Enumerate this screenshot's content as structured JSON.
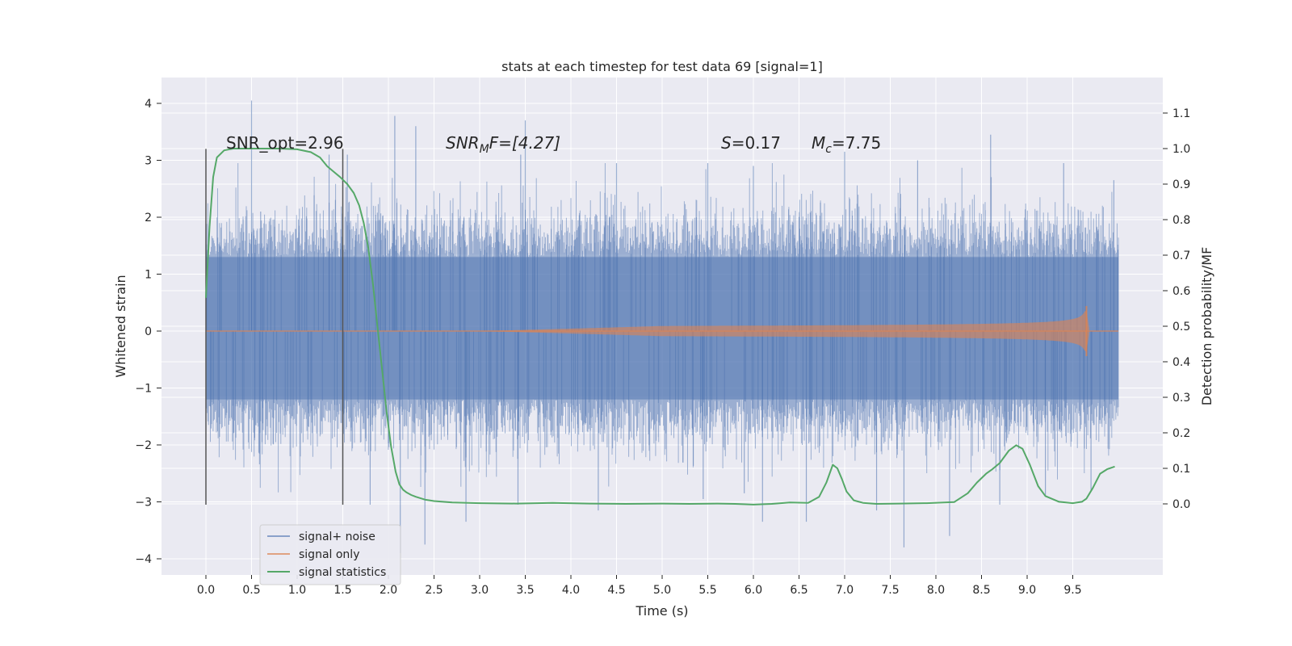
{
  "chart_data": {
    "type": "line",
    "title": "stats at each timestep for test data 69 [signal=1]",
    "xlabel": "Time (s)",
    "ylabel": "Whitened strain",
    "y2label": "Detection probability/MF",
    "xlim": [
      -0.5,
      10.5
    ],
    "ylim": [
      -4.25,
      4.4
    ],
    "y2lim": [
      -0.2,
      1.2
    ],
    "x_ticks": [
      "0.0",
      "0.5",
      "1.0",
      "1.5",
      "2.0",
      "2.5",
      "3.0",
      "3.5",
      "4.0",
      "4.5",
      "5.0",
      "5.5",
      "6.0",
      "6.5",
      "7.0",
      "7.5",
      "8.0",
      "8.5",
      "9.0",
      "9.5"
    ],
    "y_ticks": [
      "4",
      "3",
      "2",
      "1",
      "0",
      "−1",
      "−2",
      "−3",
      "−4"
    ],
    "y2_ticks": [
      "1.1",
      "1.0",
      "0.9",
      "0.8",
      "0.7",
      "0.6",
      "0.5",
      "0.4",
      "0.3",
      "0.2",
      "0.1",
      "0.0"
    ],
    "grid": true,
    "legend_position": "bottom-left",
    "colors": {
      "background": "#eaeaf2",
      "grid": "#ffffff",
      "signal_noise": "#4c72b0",
      "signal_only": "#dd8452",
      "statistics": "#55a868",
      "window_marker": "#555555"
    },
    "series": [
      {
        "name": "signal+ noise",
        "kind": "noise-band",
        "x_range": [
          0.0,
          10.0
        ],
        "core_band": [
          -1.2,
          1.3
        ],
        "envelope": [
          -2.5,
          2.6
        ],
        "spikes": [
          [
            0.5,
            4.05
          ],
          [
            1.35,
            3.1
          ],
          [
            2.07,
            3.78
          ],
          [
            2.3,
            3.6
          ],
          [
            3.5,
            3.7
          ],
          [
            3.45,
            3.1
          ],
          [
            4.5,
            2.95
          ],
          [
            5.5,
            2.95
          ],
          [
            6.0,
            2.9
          ],
          [
            7.0,
            3.15
          ],
          [
            7.8,
            3.0
          ],
          [
            8.6,
            3.45
          ],
          [
            9.4,
            2.95
          ],
          [
            9.95,
            2.65
          ],
          [
            0.6,
            2.1
          ],
          [
            1.55,
            3.1
          ],
          [
            1.8,
            -3.05
          ],
          [
            2.13,
            -3.9
          ],
          [
            2.4,
            -3.75
          ],
          [
            2.85,
            -3.35
          ],
          [
            3.42,
            -3.05
          ],
          [
            4.3,
            -3.15
          ],
          [
            5.45,
            -2.95
          ],
          [
            6.1,
            -3.35
          ],
          [
            6.58,
            -3.35
          ],
          [
            7.35,
            -3.15
          ],
          [
            7.65,
            -3.8
          ],
          [
            8.15,
            -3.6
          ],
          [
            8.7,
            -3.05
          ],
          [
            9.2,
            -2.9
          ],
          [
            5.9,
            -2.85
          ],
          [
            9.7,
            -2.8
          ]
        ]
      },
      {
        "name": "signal only",
        "kind": "chirp",
        "t_start": 3.0,
        "t_merger": 9.65,
        "peak_amplitude": 0.35
      },
      {
        "name": "signal statistics",
        "axis": "y2",
        "x": [
          0.0,
          0.04,
          0.08,
          0.12,
          0.2,
          0.3,
          0.5,
          0.8,
          1.0,
          1.15,
          1.25,
          1.33,
          1.4,
          1.47,
          1.55,
          1.62,
          1.68,
          1.73,
          1.78,
          1.83,
          1.88,
          1.93,
          1.98,
          2.03,
          2.08,
          2.12,
          2.16,
          2.2,
          2.25,
          2.3,
          2.4,
          2.5,
          2.7,
          3.0,
          3.4,
          3.8,
          4.2,
          4.6,
          5.0,
          5.3,
          5.6,
          5.8,
          6.0,
          6.2,
          6.4,
          6.6,
          6.72,
          6.8,
          6.87,
          6.92,
          6.97,
          7.02,
          7.1,
          7.2,
          7.35,
          7.6,
          7.9,
          8.2,
          8.35,
          8.45,
          8.55,
          8.62,
          8.7,
          8.8,
          8.88,
          8.95,
          9.03,
          9.12,
          9.2,
          9.35,
          9.5,
          9.6,
          9.65,
          9.72,
          9.8,
          9.88,
          9.96
        ],
        "values": [
          0.58,
          0.78,
          0.92,
          0.975,
          0.995,
          1.0,
          1.0,
          1.0,
          0.998,
          0.99,
          0.975,
          0.95,
          0.935,
          0.92,
          0.9,
          0.875,
          0.84,
          0.79,
          0.72,
          0.62,
          0.5,
          0.38,
          0.26,
          0.16,
          0.09,
          0.055,
          0.04,
          0.032,
          0.025,
          0.02,
          0.012,
          0.008,
          0.004,
          0.002,
          0.001,
          0.003,
          0.001,
          0.0,
          0.001,
          0.0,
          0.001,
          0.0,
          -0.002,
          0.0,
          0.004,
          0.003,
          0.02,
          0.06,
          0.11,
          0.1,
          0.07,
          0.035,
          0.01,
          0.003,
          0.0,
          0.001,
          0.002,
          0.005,
          0.03,
          0.06,
          0.085,
          0.098,
          0.115,
          0.15,
          0.165,
          0.155,
          0.11,
          0.05,
          0.022,
          0.006,
          0.002,
          0.006,
          0.015,
          0.045,
          0.085,
          0.098,
          0.105
        ]
      }
    ],
    "window_markers": [
      {
        "x": 0.0,
        "y_from": -3.05,
        "y_to": 3.2
      },
      {
        "x": 1.5,
        "y_from": -3.05,
        "y_to": 3.2
      }
    ],
    "annotations": {
      "snr_opt": "SNR_opt=2.96",
      "snr_mf_main": "SNR",
      "snr_mf_sub": "M",
      "snr_mf_rest": "F=[4.27]",
      "s_main": "S",
      "s_rest": "=0.17",
      "mc_main": "M",
      "mc_sub": "c",
      "mc_rest": "=7.75"
    }
  }
}
